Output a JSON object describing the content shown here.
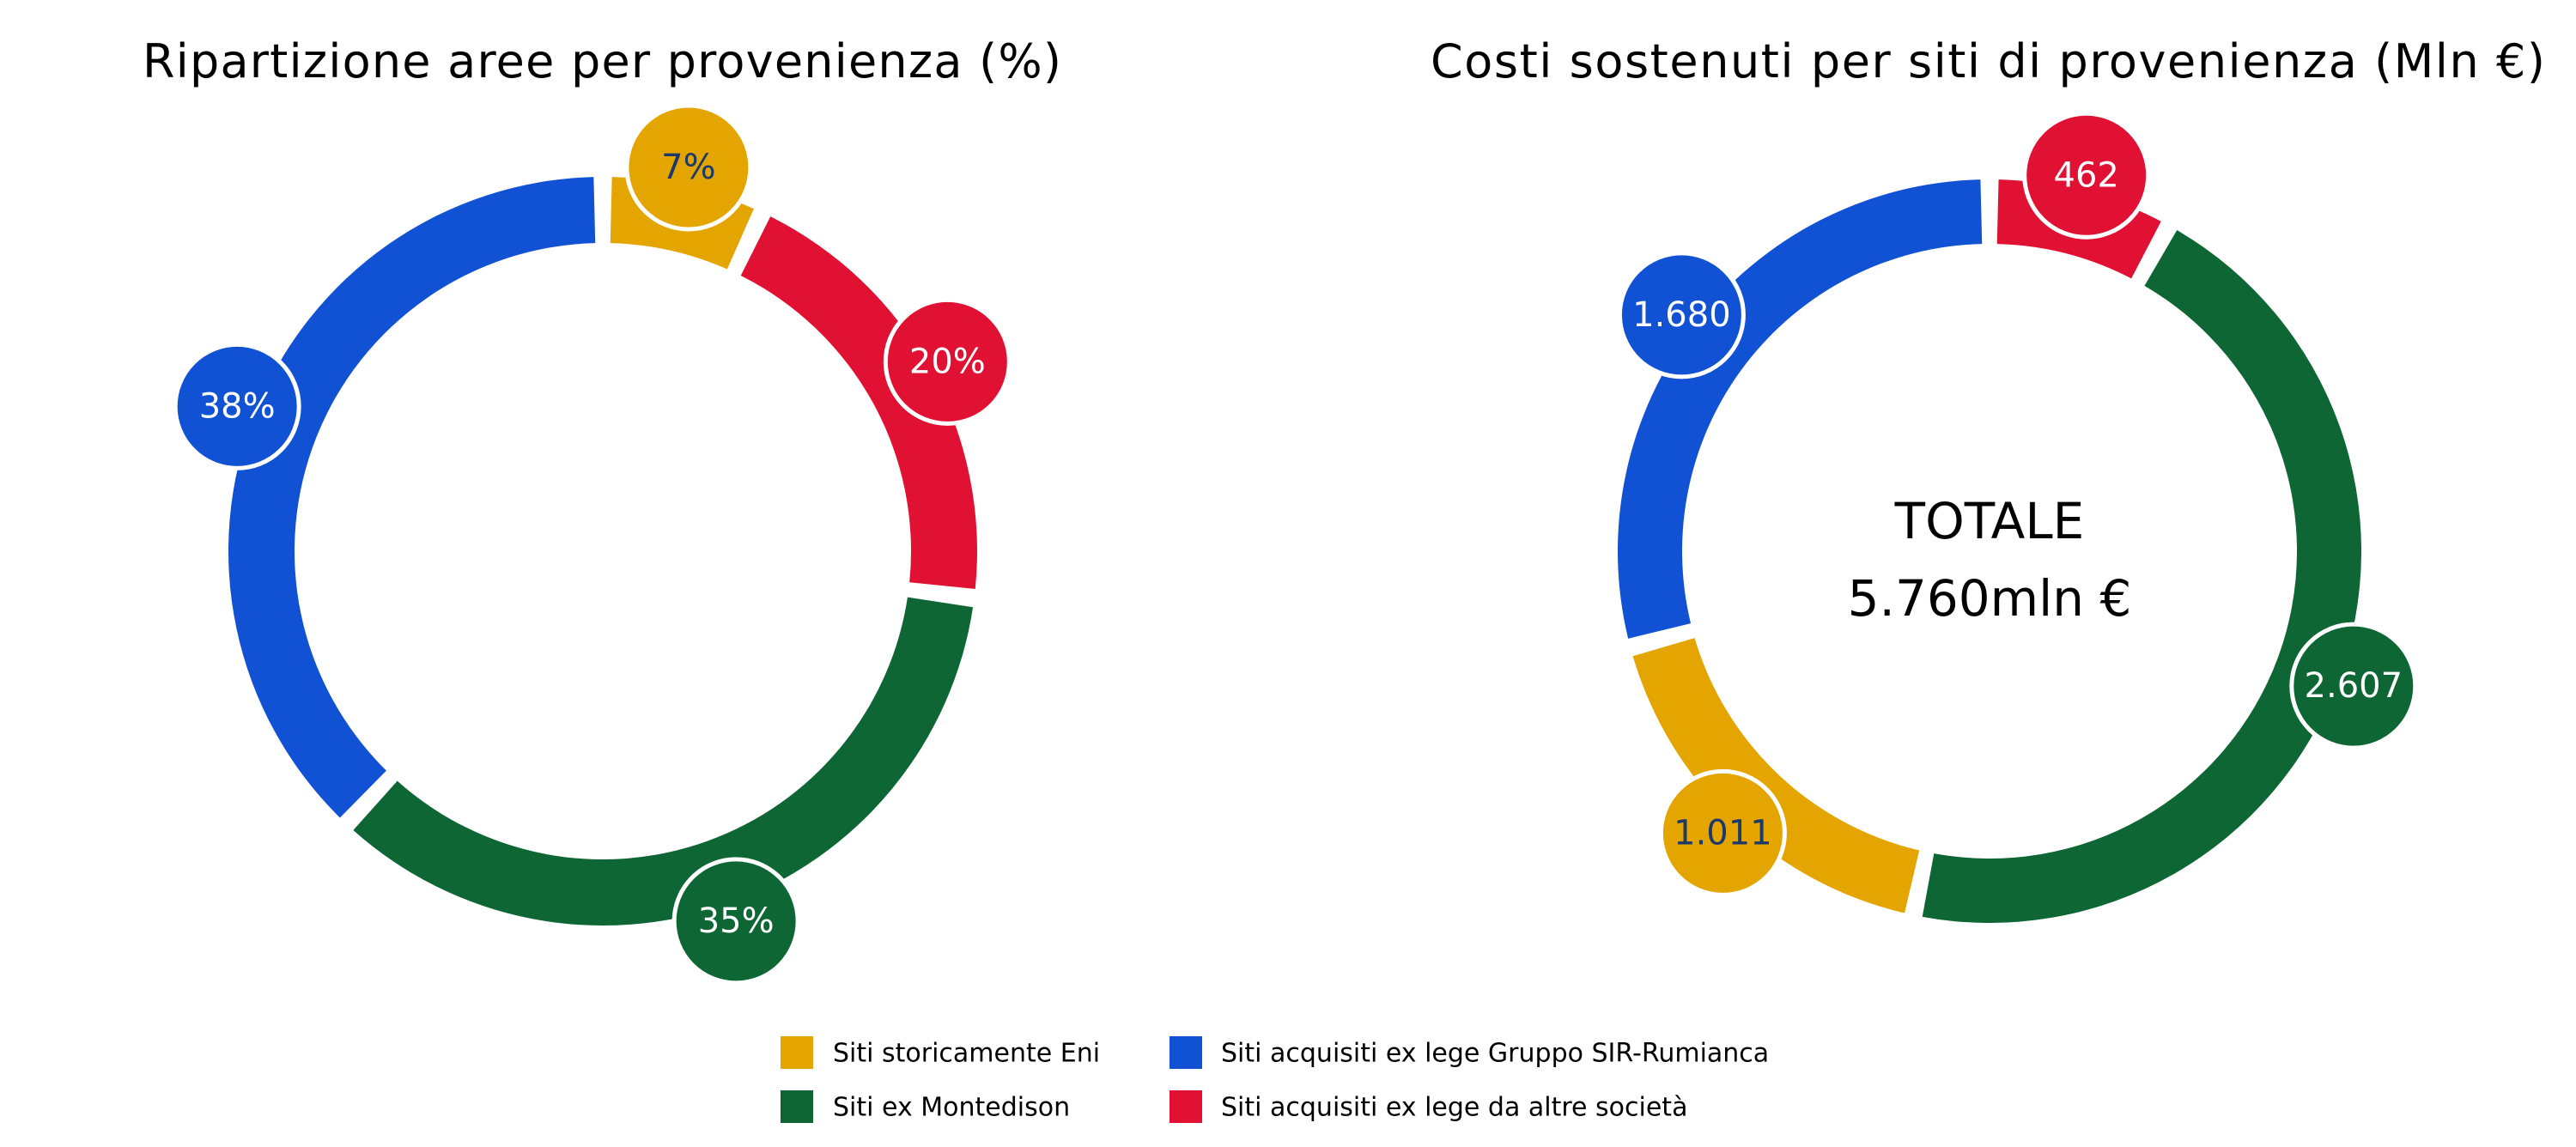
{
  "colors": {
    "eni": "#E5A500",
    "sir": "#1152D4",
    "montedison": "#0E6635",
    "altre": "#E01133",
    "dark_label": "#1B3A6B",
    "light_label": "#FFFFFF"
  },
  "chart_data": [
    {
      "type": "pie",
      "donut": true,
      "title": "Ripartizione aree per provenienza (%)",
      "start": "top",
      "direction": "clockwise",
      "slices": [
        {
          "key": "eni",
          "value": 7,
          "label": "7%"
        },
        {
          "key": "altre",
          "value": 20,
          "label": "20%"
        },
        {
          "key": "montedison",
          "value": 35,
          "label": "35%"
        },
        {
          "key": "sir",
          "value": 38,
          "label": "38%"
        }
      ]
    },
    {
      "type": "pie",
      "donut": true,
      "title": "Costi sostenuti per siti di provenienza (Mln €)",
      "start": "top",
      "direction": "clockwise",
      "center_text": [
        "TOTALE",
        "5.760mln €"
      ],
      "slices": [
        {
          "key": "altre",
          "value": 462,
          "label": "462"
        },
        {
          "key": "montedison",
          "value": 2607,
          "label": "2.607"
        },
        {
          "key": "eni",
          "value": 1011,
          "label": "1.011"
        },
        {
          "key": "sir",
          "value": 1680,
          "label": "1.680"
        }
      ]
    }
  ],
  "legend": [
    {
      "key": "eni",
      "label": "Siti storicamente Eni"
    },
    {
      "key": "sir",
      "label": "Siti acquisiti ex lege Gruppo SIR-Rumianca"
    },
    {
      "key": "montedison",
      "label": "Siti ex Montedison"
    },
    {
      "key": "altre",
      "label": "Siti acquisiti ex lege da altre società"
    }
  ]
}
